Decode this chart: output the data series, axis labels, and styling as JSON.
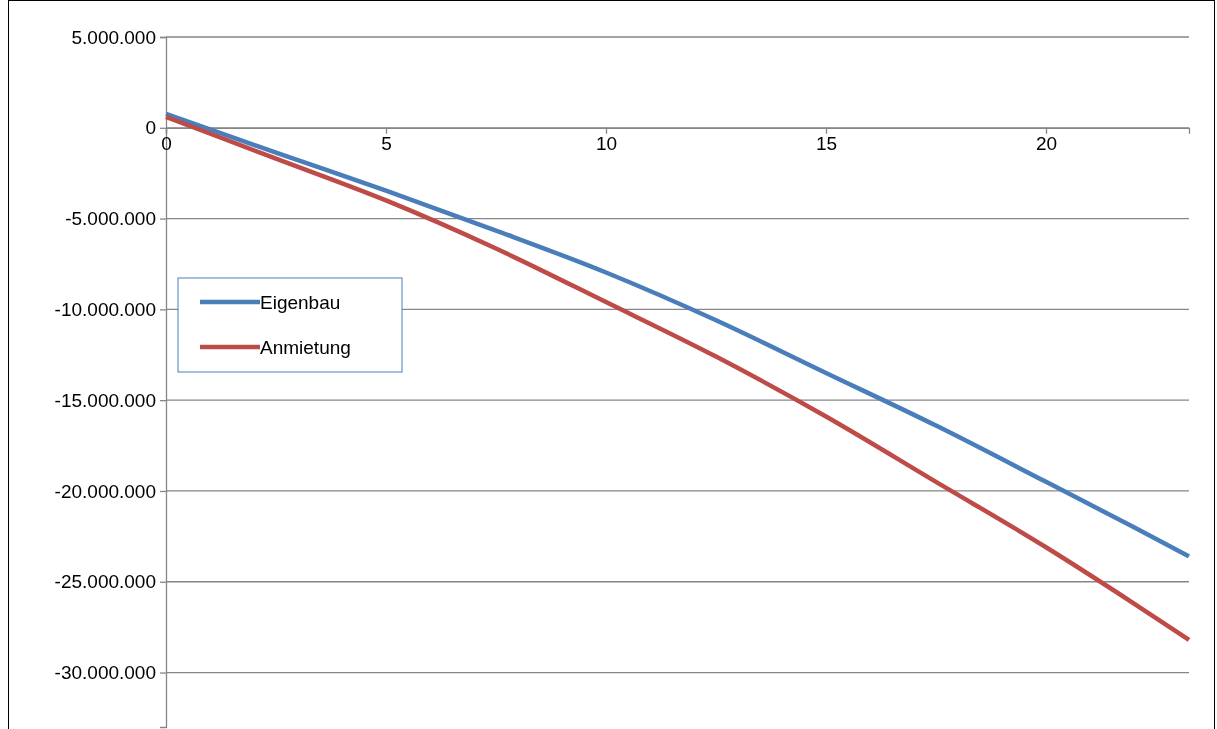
{
  "chart_data": {
    "type": "line",
    "x": [
      0,
      2.5,
      5,
      7.5,
      10,
      12.5,
      15,
      17.5,
      20,
      22,
      23.25
    ],
    "series": [
      {
        "name": "Eigenbau",
        "color": "#4a7ebb",
        "values": [
          770000,
          -1370000,
          -3460000,
          -5660000,
          -7970000,
          -10600000,
          -13500000,
          -16400000,
          -19500000,
          -22000000,
          -23600000
        ]
      },
      {
        "name": "Anmietung",
        "color": "#be4b48",
        "values": [
          600000,
          -1700000,
          -4000000,
          -6650000,
          -9600000,
          -12600000,
          -15900000,
          -19500000,
          -23100000,
          -26200000,
          -28200000
        ]
      }
    ],
    "xlim": [
      0,
      23.25
    ],
    "xticks": [
      0,
      5,
      10,
      15,
      20
    ],
    "ylim": [
      -33000000,
      5000000
    ],
    "yticks": [
      {
        "value": 5000000,
        "label": "5.000.000"
      },
      0,
      {
        "value": -5000000,
        "label": "-5.000.000"
      },
      {
        "value": -10000000,
        "label": "-10.000.000"
      },
      {
        "value": -15000000,
        "label": "-15.000.000"
      },
      {
        "value": -20000000,
        "label": "-20.000.000"
      },
      {
        "value": -25000000,
        "label": "-25.000.000"
      },
      {
        "value": -30000000,
        "label": "-30.000.000"
      }
    ],
    "grid": "y",
    "legend": "left",
    "marker": "none",
    "line_style": "solid"
  }
}
